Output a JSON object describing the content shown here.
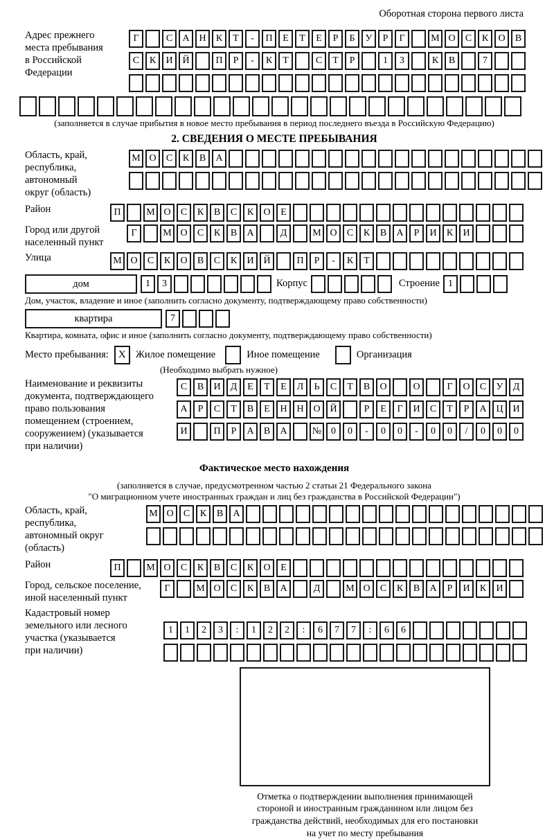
{
  "page_note": "Оборотная сторона первого листа",
  "prev_address": {
    "label": "Адрес прежнего\nместа пребывания\nв Российской\nФедерации",
    "row1": {
      "len": 24,
      "text": "Г САНКТ-ПЕТЕРБУРГ МОСКОВ"
    },
    "row2": {
      "len": 24,
      "text": "СКИЙ ПР-КТ СТР 13 КВ 7"
    },
    "row3": {
      "len": 24,
      "text": ""
    },
    "row4": {
      "len": 26,
      "text": ""
    },
    "caption": "(заполняется в случае прибытия в новое место пребывания в период последнего въезда в Российскую Федерацию)"
  },
  "section2": {
    "title": "2. СВЕДЕНИЯ О МЕСТЕ ПРЕБЫВАНИЯ",
    "oblast": {
      "label": "Область, край,\nреспублика,\nавтономный\nокруг (область)",
      "row1": {
        "len": 25,
        "text": "МОСКВА"
      },
      "row2": {
        "len": 25,
        "text": ""
      }
    },
    "rayon": {
      "label": "Район",
      "row": {
        "len": 25,
        "text": "П МОСКВСКОЕ"
      }
    },
    "gorod": {
      "label": "Город или другой\nнаселенный пункт",
      "row": {
        "len": 24,
        "text": "Г МОСКВА Д МОСКВАРИКИ"
      }
    },
    "ulitsa": {
      "label": "Улица",
      "row": {
        "len": 25,
        "text": "МОСКОВСКИЙ ПР-КТ"
      }
    },
    "dom": {
      "field_label": "дом",
      "cells": {
        "len": 8,
        "text": "13"
      },
      "korpus_label": "Корпус",
      "korpus_cells": {
        "len": 5,
        "text": ""
      },
      "stroenie_label": "Строение",
      "stroenie_cells": {
        "len": 4,
        "text": "1"
      },
      "caption": "Дом, участок, владение и иное (заполнить согласно документу, подтверждающему право собственности)"
    },
    "kvartira": {
      "field_label": "квартира",
      "cells": {
        "len": 4,
        "text": "7"
      },
      "caption": "Квартира, комната, офис и иное (заполнить согласно документу, подтверждающему право собственности)"
    },
    "mesto": {
      "label": "Место пребывания:",
      "opt1": {
        "box": "X",
        "label": "Жилое помещение"
      },
      "opt2": {
        "box": "",
        "label": "Иное помещение"
      },
      "opt3": {
        "box": "",
        "label": "Организация"
      },
      "caption": "(Необходимо выбрать нужное)"
    },
    "doc": {
      "label": "Наименование и реквизиты\nдокумента, подтверждающего\nправо пользования\nпомещением (строением,\nсооружением) (указывается\nпри наличии)",
      "row1": {
        "len": 21,
        "text": "СВИДЕТЕЛЬСТВО О ГОСУД"
      },
      "row2": {
        "len": 21,
        "text": "АРСТВЕННОЙ РЕГИСТРАЦИ"
      },
      "row3": {
        "len": 21,
        "text": "И ПРАВА №00-00-00/000"
      }
    }
  },
  "fact": {
    "title": "Фактическое место нахождения",
    "caption1": "(заполняется в случае, предусмотренном частью 2 статьи 21 Федерального закона",
    "caption2": "\"О миграционном учете иностранных граждан и лиц без гражданства в Российской Федерации\")",
    "oblast": {
      "label": "Область, край,\nреспублика,\nавтономный округ\n(область)",
      "row1": {
        "len": 24,
        "text": "МОСКВА"
      },
      "row2": {
        "len": 24,
        "text": ""
      }
    },
    "rayon": {
      "label": "Район",
      "row": {
        "len": 25,
        "text": "П МОСКВСКОЕ"
      }
    },
    "gorod": {
      "label": "Город, сельское поселение,\nиной населенный пункт",
      "row": {
        "len": 22,
        "text": "Г МОСКВА Д МОСКВАРИКИ"
      }
    },
    "kadastr": {
      "label": "Кадастровый номер\nземельного или лесного\nучастка (указывается\nпри наличии)",
      "row1": {
        "len": 22,
        "text": "1123:122:677:66"
      },
      "row2": {
        "len": 22,
        "text": ""
      }
    },
    "stamp_caption": "Отметка о подтверждении выполнения принимающей\nстороной и иностранным гражданином или лицом без\nгражданства действий, необходимых для его постановки\nна учет по месту пребывания"
  }
}
